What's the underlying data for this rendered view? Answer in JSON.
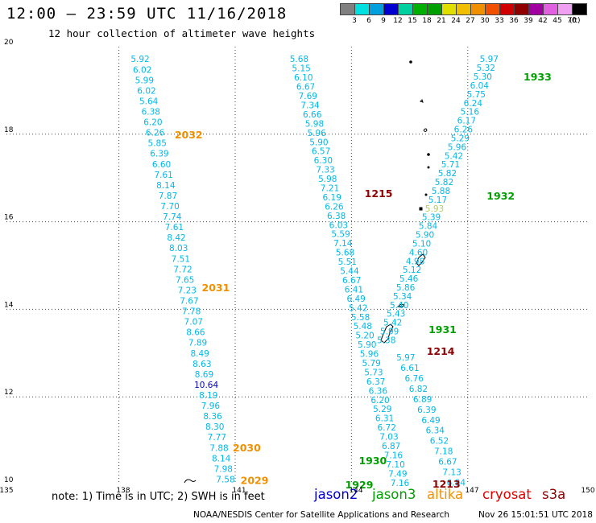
{
  "header": {
    "title": "12:00 – 23:59 UTC 11/16/2018",
    "subtitle": "12 hour collection of altimeter wave heights"
  },
  "colorbar": {
    "colors": [
      "#808080",
      "#00e0e0",
      "#00a0e0",
      "#0000d0",
      "#00d0a0",
      "#00b000",
      "#00a000",
      "#e0e000",
      "#f0c000",
      "#f09000",
      "#f05000",
      "#d00000",
      "#900000",
      "#a000a0",
      "#e060e0",
      "#f0a0f0",
      "#000000"
    ],
    "labels": [
      "3",
      "6",
      "9",
      "12",
      "15",
      "18",
      "21",
      "24",
      "27",
      "30",
      "33",
      "36",
      "39",
      "42",
      "45",
      "70"
    ],
    "unit": "(ft)"
  },
  "chart_data": {
    "type": "scatter",
    "title": "12:00 – 23:59 UTC 11/16/2018",
    "subtitle": "12 hour collection of altimeter wave heights",
    "xlim": [
      135,
      150
    ],
    "ylim": [
      10,
      20
    ],
    "x_ticks": [
      "135",
      "138",
      "141",
      "144",
      "147",
      "150"
    ],
    "y_ticks": [
      "10",
      "12",
      "14",
      "16",
      "18",
      "20"
    ],
    "grid": true,
    "units": "ft",
    "tracks": [
      {
        "label": "2032/2031/2030/2029",
        "color": "#00b8e8",
        "x_start": 138.45,
        "y_start": 19.72,
        "x_end": 140.65,
        "y_end": 10.12,
        "values": [
          "5.92",
          "6.02",
          "5.99",
          "6.02",
          "5.64",
          "6.38",
          "6.20",
          "6.26",
          "5.85",
          "6.39",
          "6.60",
          "7.61",
          "8.14",
          "7.87",
          "7.70",
          "7.74",
          "7.61",
          "8.42",
          "8.03",
          "7.51",
          "7.72",
          "7.65",
          "7.23",
          "7.67",
          "7.78",
          "7.07",
          "8.66",
          "7.89",
          "8.49",
          "8.63",
          "8.69",
          "10.64",
          "8.19",
          "7.96",
          "8.36",
          "8.30",
          "7.77",
          "7.88",
          "8.14",
          "7.98",
          "7.58"
        ],
        "highlight_index": 31,
        "highlight_color": "#0000c0"
      },
      {
        "label": "1215/1214/1213",
        "color": "#00b8e8",
        "x_start": 142.55,
        "y_start": 19.72,
        "x_end": 145.15,
        "y_end": 10.04,
        "values": [
          "5.68",
          "5.15",
          "6.10",
          "6.67",
          "7.69",
          "7.34",
          "6.66",
          "5.98",
          "5.96",
          "5.90",
          "6.57",
          "6.30",
          "7.33",
          "5.98",
          "7.21",
          "6.19",
          "6.26",
          "6.38",
          "6.03",
          "5.59",
          "7.14",
          "5.68",
          "5.51",
          "5.44",
          "6.67",
          "6.41",
          "6.49",
          "5.42",
          "5.58",
          "5.48",
          "5.20",
          "5.90",
          "5.96",
          "5.79",
          "5.73",
          "6.37",
          "6.36",
          "6.20",
          "5.29",
          "6.31",
          "6.72",
          "7.03",
          "6.87",
          "7.16",
          "7.10",
          "7.49",
          "7.16"
        ]
      },
      {
        "label": "1933/1932/1931",
        "color": "#00b8e8",
        "x_start": 147.45,
        "y_start": 19.72,
        "x_end": 144.8,
        "y_end": 13.3,
        "values": [
          "5.97",
          "5.32",
          "5.30",
          "6.04",
          "5.75",
          "6.24",
          "5.16",
          "6.17",
          "6.26",
          "5.29",
          "5.96",
          "5.42",
          "5.71",
          "5.82",
          "5.82",
          "5.88",
          "5.17",
          "5.93",
          "5.39",
          "5.84",
          "5.90",
          "5.10",
          "4.60",
          "4.98",
          "5.12",
          "5.46",
          "5.86",
          "5.34",
          "5.40",
          "5.43",
          "5.42",
          "5.99",
          "5.38"
        ],
        "highlight_index": 17,
        "highlight_color": "#b0d060"
      },
      {
        "label": "1930/1929",
        "color": "#00b8e8",
        "x_start": 145.3,
        "y_start": 12.9,
        "x_end": 146.6,
        "y_end": 10.05,
        "values": [
          "5.97",
          "6.61",
          "6.76",
          "6.82",
          "6.89",
          "6.39",
          "6.49",
          "6.34",
          "6.52",
          "7.18",
          "6.67",
          "7.13",
          "6.84"
        ]
      }
    ],
    "pass_labels": [
      {
        "text": "2032",
        "color": "#f09000",
        "x": 139.7,
        "y": 18.0
      },
      {
        "text": "2031",
        "color": "#f09000",
        "x": 140.4,
        "y": 14.5
      },
      {
        "text": "2030",
        "color": "#f09000",
        "x": 141.2,
        "y": 10.85
      },
      {
        "text": "2029",
        "color": "#f09000",
        "x": 141.4,
        "y": 10.1
      },
      {
        "text": "1215",
        "color": "#900000",
        "x": 144.6,
        "y": 16.65
      },
      {
        "text": "1214",
        "color": "#900000",
        "x": 146.2,
        "y": 13.05
      },
      {
        "text": "1213",
        "color": "#900000",
        "x": 146.35,
        "y": 10.02
      },
      {
        "text": "1933",
        "color": "#00a000",
        "x": 148.7,
        "y": 19.32
      },
      {
        "text": "1932",
        "color": "#00a000",
        "x": 147.75,
        "y": 16.6
      },
      {
        "text": "1931",
        "color": "#00a000",
        "x": 146.25,
        "y": 13.55
      },
      {
        "text": "1930",
        "color": "#00a000",
        "x": 144.45,
        "y": 10.55
      },
      {
        "text": "1929",
        "color": "#00a000",
        "x": 144.1,
        "y": 10.0
      }
    ]
  },
  "footer": {
    "note": "note: 1) Time is in UTC; 2) SWH is in feet",
    "legend": [
      {
        "text": "jason2",
        "color": "#0000d0"
      },
      {
        "text": "jason3",
        "color": "#00a000"
      },
      {
        "text": "altika",
        "color": "#f09000"
      },
      {
        "text": "cryosat",
        "color": "#e00000"
      },
      {
        "text": "s3a",
        "color": "#900000"
      }
    ],
    "credit": "NOAA/NESDIS Center for Satellite Applications and Research",
    "timestamp": "Nov 26 15:01:51 UTC 2018"
  }
}
